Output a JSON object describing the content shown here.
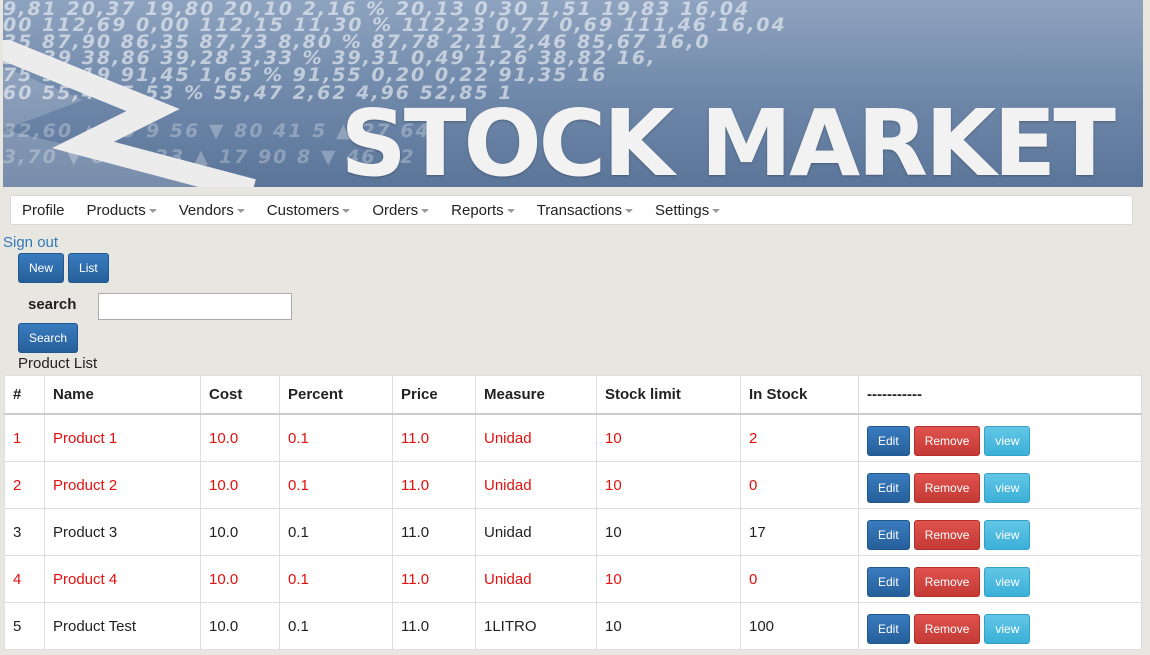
{
  "banner": {
    "title": "STOCK MARKET",
    "ticker_rows": [
      "9,81   20,37  19,80    20,10     2,16 %     20,13  0,30  1,51    19,83  16,04",
      "00  112,69  0,00    112,15   11,30 %   112,23  0,77  0,69  111,46  16,04",
      "35   87,90  86,35     87,73     8,80 %    87,78  2,11  2,46    85,67  16,0",
      "39,39  38,86     39,28     3,33 %    39,31  0,49  1,26    38,82  16,",
      "75   91,19       91,45     1,65 %    91,55  0,20  0,22    91,35  16",
      "60      55,41     5,53 %    55,47  2,62  4,96    52,85  1"
    ]
  },
  "nav": {
    "items": [
      {
        "label": "Profile",
        "dropdown": false
      },
      {
        "label": "Products",
        "dropdown": true
      },
      {
        "label": "Vendors",
        "dropdown": true
      },
      {
        "label": "Customers",
        "dropdown": true
      },
      {
        "label": "Orders",
        "dropdown": true
      },
      {
        "label": "Reports",
        "dropdown": true
      },
      {
        "label": "Transactions",
        "dropdown": true
      },
      {
        "label": "Settings",
        "dropdown": true
      }
    ],
    "signout": "Sign out"
  },
  "toolbar": {
    "new_label": "New",
    "list_label": "List",
    "search_label": "search",
    "search_value": "",
    "search_button": "Search",
    "list_title": "Product List"
  },
  "table": {
    "headers": [
      "#",
      "Name",
      "Cost",
      "Percent",
      "Price",
      "Measure",
      "Stock limit",
      "In Stock",
      "-----------"
    ],
    "rows": [
      {
        "cells": [
          "1",
          "Product 1",
          "10.0",
          "0.1",
          "11.0",
          "Unidad",
          "10",
          "2"
        ],
        "low_stock": true
      },
      {
        "cells": [
          "2",
          "Product 2",
          "10.0",
          "0.1",
          "11.0",
          "Unidad",
          "10",
          "0"
        ],
        "low_stock": true
      },
      {
        "cells": [
          "3",
          "Product 3",
          "10.0",
          "0.1",
          "11.0",
          "Unidad",
          "10",
          "17"
        ],
        "low_stock": false
      },
      {
        "cells": [
          "4",
          "Product 4",
          "10.0",
          "0.1",
          "11.0",
          "Unidad",
          "10",
          "0"
        ],
        "low_stock": true
      },
      {
        "cells": [
          "5",
          "Product Test",
          "10.0",
          "0.1",
          "11.0",
          "1LITRO",
          "10",
          "100"
        ],
        "low_stock": false
      }
    ],
    "actions": {
      "edit": "Edit",
      "remove": "Remove",
      "view": "view"
    }
  },
  "colors": {
    "low_stock_text": "#e0100f",
    "link": "#337ab7",
    "primary": "#2d6ca8",
    "danger": "#d9534f",
    "info": "#5bc0de"
  }
}
